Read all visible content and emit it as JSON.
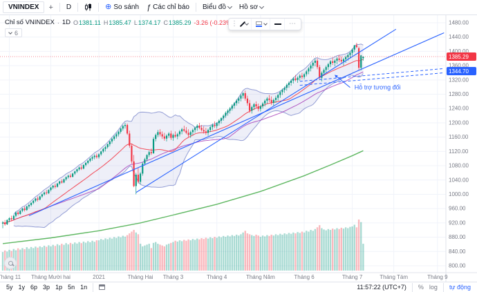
{
  "toolbar": {
    "symbol": "VNINDEX",
    "interval": "D",
    "compare_label": "So sánh",
    "indicators_label": "Các chỉ báo",
    "chart_label": "Biểu đồ",
    "profile_label": "Hồ sơ"
  },
  "icons": {
    "plus": "+",
    "circle_plus": "⊕",
    "fx": "ƒ",
    "drag": "⋮",
    "more": "⋯"
  },
  "legend": {
    "title": "Chỉ số VNINDEX",
    "sep": "·",
    "interval": "1D",
    "o_label": "O",
    "o": "1381.11",
    "h_label": "H",
    "h": "1385.47",
    "l_label": "L",
    "l": "1374.17",
    "c_label": "C",
    "c": "1385.29",
    "change": "-3.26 (-0.23%)",
    "indicators_count": "6"
  },
  "floating_toolbar": {
    "tools": [
      "drag-handle",
      "pencil",
      "line-color",
      "line-style",
      "more-options"
    ]
  },
  "bottom": {
    "ranges": [
      "5y",
      "1y",
      "6p",
      "3p",
      "1p",
      "5n",
      "1n"
    ],
    "clock": "11:57:22 (UTC+7)",
    "percent_label": "%",
    "log_label": "log",
    "auto_label": "tự động"
  },
  "chart_data": {
    "type": "candlestick",
    "title": "Chỉ số VNINDEX · 1D",
    "symbol": "VNINDEX",
    "interval": "1D",
    "ylim": [
      800,
      1480
    ],
    "y_ticks": [
      1480,
      1440,
      1400,
      1360,
      1320,
      1280,
      1240,
      1200,
      1160,
      1120,
      1080,
      1040,
      1000,
      960,
      920,
      880,
      840,
      800
    ],
    "x_ticks": [
      {
        "label": "Tháng 11",
        "i": 3
      },
      {
        "label": "Tháng Mười hai",
        "i": 22
      },
      {
        "label": "2021",
        "i": 44
      },
      {
        "label": "Tháng Hai",
        "i": 63
      },
      {
        "label": "Tháng 3",
        "i": 78
      },
      {
        "label": "Tháng 4",
        "i": 98
      },
      {
        "label": "Tháng Năm",
        "i": 118
      },
      {
        "label": "Tháng 6",
        "i": 138
      },
      {
        "label": "Tháng 7",
        "i": 160
      },
      {
        "label": "Tháng Tám",
        "i": 179
      },
      {
        "label": "Tháng 9",
        "i": 199
      }
    ],
    "price_badge": {
      "value": "1385.29",
      "color": "#f23645"
    },
    "drawing_badge": {
      "value": "1344.70",
      "color": "#2962ff"
    },
    "colors": {
      "up": "#089981",
      "down": "#f23645",
      "band_line": "#7986cb",
      "band_fill": "rgba(121,134,203,0.13)",
      "ma_fast": "#f23645",
      "ma_mid": "#9c27b0",
      "ma_slow": "#4caf50",
      "drawing": "#2962ff",
      "grid": "#f0f3fa",
      "axis_text": "#787b86"
    },
    "candles": [
      [
        918,
        925,
        905,
        921
      ],
      [
        921,
        928,
        912,
        916
      ],
      [
        916,
        930,
        914,
        928
      ],
      [
        928,
        936,
        922,
        933
      ],
      [
        933,
        940,
        926,
        930
      ],
      [
        930,
        942,
        928,
        940
      ],
      [
        940,
        951,
        936,
        949
      ],
      [
        949,
        953,
        941,
        945
      ],
      [
        945,
        956,
        943,
        954
      ],
      [
        954,
        962,
        950,
        960
      ],
      [
        960,
        966,
        952,
        956
      ],
      [
        956,
        968,
        954,
        966
      ],
      [
        966,
        974,
        960,
        970
      ],
      [
        970,
        978,
        966,
        976
      ],
      [
        976,
        984,
        972,
        982
      ],
      [
        982,
        990,
        978,
        988
      ],
      [
        988,
        994,
        980,
        985
      ],
      [
        985,
        996,
        983,
        994
      ],
      [
        994,
        1002,
        990,
        1000
      ],
      [
        1000,
        1008,
        996,
        1005
      ],
      [
        1005,
        1012,
        999,
        1003
      ],
      [
        1003,
        1014,
        1001,
        1012
      ],
      [
        1012,
        1021,
        1008,
        1019
      ],
      [
        1019,
        1026,
        1014,
        1024
      ],
      [
        1024,
        1030,
        1016,
        1021
      ],
      [
        1021,
        1032,
        1019,
        1030
      ],
      [
        1030,
        1038,
        1026,
        1036
      ],
      [
        1036,
        1042,
        1030,
        1033
      ],
      [
        1033,
        1044,
        1031,
        1042
      ],
      [
        1042,
        1050,
        1038,
        1048
      ],
      [
        1048,
        1055,
        1044,
        1052
      ],
      [
        1052,
        1058,
        1046,
        1049
      ],
      [
        1049,
        1060,
        1047,
        1058
      ],
      [
        1058,
        1066,
        1054,
        1064
      ],
      [
        1064,
        1072,
        1060,
        1070
      ],
      [
        1070,
        1078,
        1066,
        1075
      ],
      [
        1075,
        1082,
        1068,
        1072
      ],
      [
        1072,
        1084,
        1070,
        1082
      ],
      [
        1082,
        1090,
        1078,
        1088
      ],
      [
        1088,
        1096,
        1084,
        1094
      ],
      [
        1094,
        1102,
        1090,
        1100
      ],
      [
        1100,
        1108,
        1094,
        1104
      ],
      [
        1104,
        1112,
        1098,
        1108
      ],
      [
        1108,
        1114,
        1100,
        1104
      ],
      [
        1104,
        1115,
        1100,
        1112
      ],
      [
        1112,
        1122,
        1108,
        1120
      ],
      [
        1120,
        1130,
        1116,
        1127
      ],
      [
        1127,
        1136,
        1120,
        1132
      ],
      [
        1132,
        1142,
        1128,
        1140
      ],
      [
        1140,
        1150,
        1134,
        1148
      ],
      [
        1148,
        1158,
        1142,
        1155
      ],
      [
        1155,
        1165,
        1150,
        1162
      ],
      [
        1162,
        1172,
        1156,
        1168
      ],
      [
        1168,
        1178,
        1162,
        1175
      ],
      [
        1175,
        1186,
        1170,
        1184
      ],
      [
        1184,
        1194,
        1178,
        1191
      ],
      [
        1191,
        1200,
        1184,
        1194
      ],
      [
        1194,
        1198,
        1166,
        1170
      ],
      [
        1170,
        1178,
        1130,
        1136
      ],
      [
        1136,
        1142,
        1086,
        1092
      ],
      [
        1092,
        1110,
        1020,
        1023
      ],
      [
        1023,
        1060,
        1000,
        1055
      ],
      [
        1055,
        1075,
        1030,
        1035
      ],
      [
        1035,
        1062,
        1028,
        1058
      ],
      [
        1058,
        1090,
        1052,
        1086
      ],
      [
        1086,
        1102,
        1080,
        1098
      ],
      [
        1098,
        1112,
        1092,
        1110
      ],
      [
        1110,
        1122,
        1104,
        1118
      ],
      [
        1118,
        1128,
        1110,
        1115
      ],
      [
        1115,
        1160,
        1113,
        1155
      ],
      [
        1155,
        1170,
        1148,
        1166
      ],
      [
        1166,
        1180,
        1160,
        1174
      ],
      [
        1174,
        1182,
        1162,
        1168
      ],
      [
        1168,
        1176,
        1155,
        1162
      ],
      [
        1162,
        1172,
        1150,
        1156
      ],
      [
        1156,
        1168,
        1148,
        1164
      ],
      [
        1164,
        1174,
        1158,
        1170
      ],
      [
        1170,
        1178,
        1152,
        1158
      ],
      [
        1158,
        1170,
        1150,
        1166
      ],
      [
        1166,
        1176,
        1158,
        1162
      ],
      [
        1162,
        1172,
        1154,
        1168
      ],
      [
        1168,
        1180,
        1162,
        1176
      ],
      [
        1176,
        1186,
        1168,
        1182
      ],
      [
        1182,
        1192,
        1174,
        1178
      ],
      [
        1178,
        1188,
        1168,
        1172
      ],
      [
        1172,
        1182,
        1160,
        1166
      ],
      [
        1166,
        1178,
        1158,
        1174
      ],
      [
        1174,
        1184,
        1166,
        1180
      ],
      [
        1180,
        1190,
        1172,
        1186
      ],
      [
        1186,
        1196,
        1178,
        1192
      ],
      [
        1192,
        1200,
        1182,
        1186
      ],
      [
        1186,
        1194,
        1176,
        1180
      ],
      [
        1180,
        1190,
        1170,
        1176
      ],
      [
        1176,
        1186,
        1166,
        1172
      ],
      [
        1172,
        1184,
        1164,
        1180
      ],
      [
        1180,
        1192,
        1174,
        1188
      ],
      [
        1188,
        1198,
        1180,
        1194
      ],
      [
        1194,
        1204,
        1186,
        1191
      ],
      [
        1191,
        1202,
        1184,
        1199
      ],
      [
        1199,
        1210,
        1192,
        1206
      ],
      [
        1206,
        1216,
        1198,
        1213
      ],
      [
        1213,
        1224,
        1206,
        1220
      ],
      [
        1220,
        1232,
        1214,
        1228
      ],
      [
        1228,
        1238,
        1220,
        1234
      ],
      [
        1234,
        1244,
        1226,
        1240
      ],
      [
        1240,
        1252,
        1234,
        1248
      ],
      [
        1248,
        1258,
        1240,
        1255
      ],
      [
        1255,
        1266,
        1248,
        1262
      ],
      [
        1262,
        1272,
        1254,
        1268
      ],
      [
        1268,
        1280,
        1260,
        1276
      ],
      [
        1276,
        1286,
        1268,
        1283
      ],
      [
        1283,
        1290,
        1262,
        1268
      ],
      [
        1268,
        1276,
        1248,
        1255
      ],
      [
        1255,
        1264,
        1228,
        1234
      ],
      [
        1234,
        1248,
        1226,
        1244
      ],
      [
        1244,
        1256,
        1236,
        1252
      ],
      [
        1252,
        1260,
        1240,
        1246
      ],
      [
        1246,
        1254,
        1232,
        1239
      ],
      [
        1239,
        1250,
        1232,
        1246
      ],
      [
        1246,
        1258,
        1240,
        1254
      ],
      [
        1254,
        1266,
        1246,
        1262
      ],
      [
        1262,
        1272,
        1254,
        1268
      ],
      [
        1268,
        1278,
        1258,
        1264
      ],
      [
        1264,
        1274,
        1250,
        1256
      ],
      [
        1256,
        1268,
        1248,
        1264
      ],
      [
        1264,
        1276,
        1256,
        1270
      ],
      [
        1270,
        1282,
        1262,
        1278
      ],
      [
        1278,
        1290,
        1270,
        1286
      ],
      [
        1286,
        1296,
        1278,
        1292
      ],
      [
        1292,
        1302,
        1284,
        1298
      ],
      [
        1298,
        1310,
        1290,
        1306
      ],
      [
        1306,
        1316,
        1298,
        1312
      ],
      [
        1312,
        1322,
        1304,
        1318
      ],
      [
        1318,
        1328,
        1310,
        1324
      ],
      [
        1324,
        1334,
        1316,
        1320
      ],
      [
        1320,
        1330,
        1312,
        1326
      ],
      [
        1326,
        1336,
        1318,
        1332
      ],
      [
        1332,
        1340,
        1322,
        1328
      ],
      [
        1328,
        1340,
        1322,
        1336
      ],
      [
        1336,
        1348,
        1330,
        1344
      ],
      [
        1344,
        1356,
        1336,
        1352
      ],
      [
        1352,
        1364,
        1344,
        1360
      ],
      [
        1360,
        1372,
        1352,
        1368
      ],
      [
        1368,
        1380,
        1358,
        1374
      ],
      [
        1374,
        1380,
        1350,
        1356
      ],
      [
        1356,
        1362,
        1320,
        1326
      ],
      [
        1326,
        1344,
        1316,
        1340
      ],
      [
        1340,
        1352,
        1332,
        1348
      ],
      [
        1348,
        1360,
        1340,
        1356
      ],
      [
        1356,
        1368,
        1348,
        1364
      ],
      [
        1364,
        1376,
        1356,
        1372
      ],
      [
        1372,
        1382,
        1362,
        1368
      ],
      [
        1368,
        1378,
        1358,
        1374
      ],
      [
        1374,
        1384,
        1364,
        1380
      ],
      [
        1380,
        1390,
        1370,
        1376
      ],
      [
        1376,
        1386,
        1366,
        1372
      ],
      [
        1372,
        1382,
        1360,
        1378
      ],
      [
        1378,
        1388,
        1368,
        1384
      ],
      [
        1384,
        1394,
        1374,
        1390
      ],
      [
        1390,
        1400,
        1380,
        1396
      ],
      [
        1396,
        1408,
        1388,
        1405
      ],
      [
        1405,
        1418,
        1398,
        1417
      ],
      [
        1417,
        1424,
        1409,
        1412
      ],
      [
        1409,
        1413,
        1348,
        1354
      ],
      [
        1354,
        1390,
        1347,
        1388.55
      ],
      [
        1381.11,
        1385.47,
        1374.17,
        1385.29
      ]
    ],
    "volumes": [
      430,
      465,
      440,
      480,
      455,
      500,
      470,
      515,
      485,
      520,
      495,
      540,
      505,
      545,
      520,
      555,
      530,
      560,
      540,
      575,
      550,
      585,
      560,
      595,
      570,
      610,
      585,
      620,
      595,
      635,
      605,
      640,
      615,
      650,
      625,
      660,
      635,
      670,
      645,
      680,
      655,
      690,
      665,
      700,
      700,
      730,
      710,
      745,
      725,
      760,
      740,
      775,
      755,
      790,
      770,
      805,
      785,
      820,
      860,
      900,
      940,
      880,
      840,
      620,
      560,
      580,
      600,
      620,
      520,
      640,
      660,
      620,
      600,
      580,
      560,
      600,
      620,
      640,
      660,
      690,
      670,
      700,
      680,
      710,
      690,
      720,
      700,
      730,
      710,
      740,
      720,
      750,
      730,
      760,
      740,
      770,
      750,
      780,
      760,
      790,
      770,
      800,
      780,
      810,
      790,
      820,
      800,
      830,
      810,
      840,
      880,
      920,
      860,
      840,
      820,
      800,
      830,
      810,
      780,
      810,
      790,
      820,
      800,
      830,
      810,
      840,
      820,
      850,
      830,
      860,
      840,
      870,
      850,
      880,
      860,
      890,
      870,
      900,
      880,
      920,
      900,
      940,
      920,
      960,
      1000,
      1050,
      980,
      950,
      930,
      960,
      940,
      970,
      950,
      980,
      960,
      990,
      970,
      1000,
      980,
      1010,
      1020,
      1060,
      1000,
      1180,
      1120,
      620
    ],
    "overlays": {
      "ma_green": [
        [
          0,
          862
        ],
        [
          22,
          878
        ],
        [
          44,
          898
        ],
        [
          63,
          920
        ],
        [
          78,
          942
        ],
        [
          98,
          972
        ],
        [
          118,
          1008
        ],
        [
          138,
          1052
        ],
        [
          150,
          1082
        ],
        [
          160,
          1108
        ],
        [
          165,
          1122
        ]
      ]
    },
    "drawings": {
      "trendlines": [
        {
          "points": [
            [
              12,
              940
            ],
            [
              202,
              1452
            ]
          ]
        },
        {
          "points": [
            [
              61,
              1005
            ],
            [
              180,
              1462
            ]
          ]
        }
      ],
      "dashed_lines": [
        {
          "points": [
            [
              136,
              1305
            ],
            [
              202,
              1340
            ]
          ]
        },
        {
          "points": [
            [
              136,
              1316
            ],
            [
              202,
              1352
            ]
          ]
        }
      ],
      "annotation": {
        "text": "Hỗ trợ tương đối",
        "i": 161,
        "price": 1294,
        "arrow": {
          "from": [
            159,
            1299
          ],
          "to": [
            152,
            1334
          ]
        }
      }
    }
  }
}
